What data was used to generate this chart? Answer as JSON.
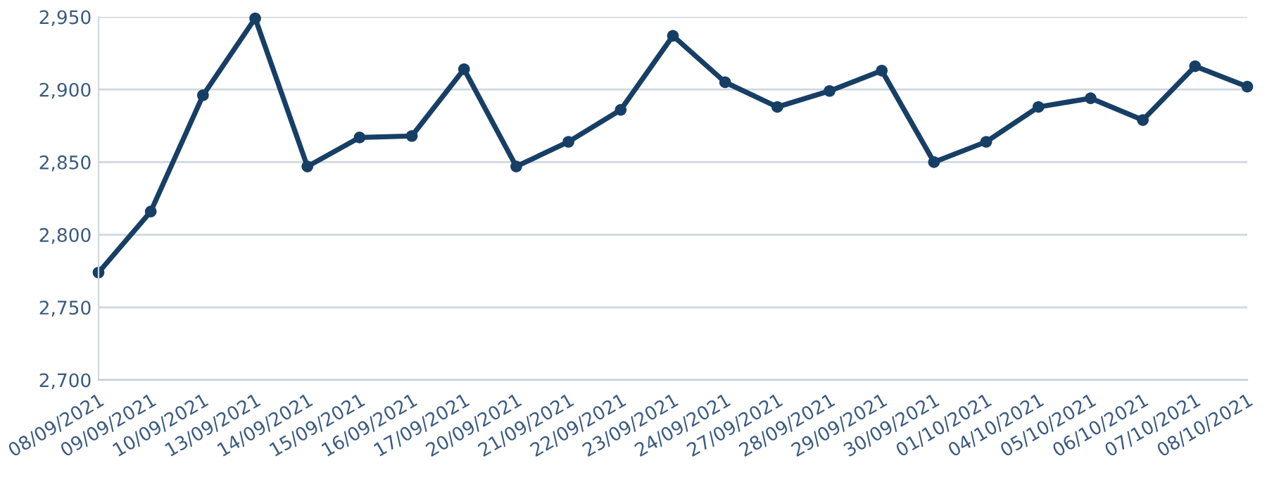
{
  "chart_data": {
    "type": "line",
    "categories": [
      "08/09/2021",
      "09/09/2021",
      "10/09/2021",
      "13/09/2021",
      "14/09/2021",
      "15/09/2021",
      "16/09/2021",
      "17/09/2021",
      "20/09/2021",
      "21/09/2021",
      "22/09/2021",
      "23/09/2021",
      "24/09/2021",
      "27/09/2021",
      "28/09/2021",
      "29/09/2021",
      "30/09/2021",
      "01/10/2021",
      "04/10/2021",
      "05/10/2021",
      "06/10/2021",
      "07/10/2021",
      "08/10/2021"
    ],
    "series": [
      {
        "color": "#173f66",
        "values": [
          2774,
          2816,
          2896,
          2949,
          2847,
          2867,
          2868,
          2914,
          2847,
          2864,
          2886,
          2937,
          2905,
          2888,
          2899,
          2913,
          2850,
          2864,
          2888,
          2894,
          2879,
          2916,
          2902
        ]
      }
    ],
    "ylim": [
      2700,
      2950
    ],
    "yticks": [
      {
        "value": 2700,
        "label": "2,700"
      },
      {
        "value": 2750,
        "label": "2,750"
      },
      {
        "value": 2800,
        "label": "2,800"
      },
      {
        "value": 2850,
        "label": "2,850"
      },
      {
        "value": 2900,
        "label": "2,900"
      },
      {
        "value": 2950,
        "label": "2,950"
      }
    ],
    "grid": "y",
    "marker": "circle",
    "line_style": "solid",
    "legend": false
  }
}
